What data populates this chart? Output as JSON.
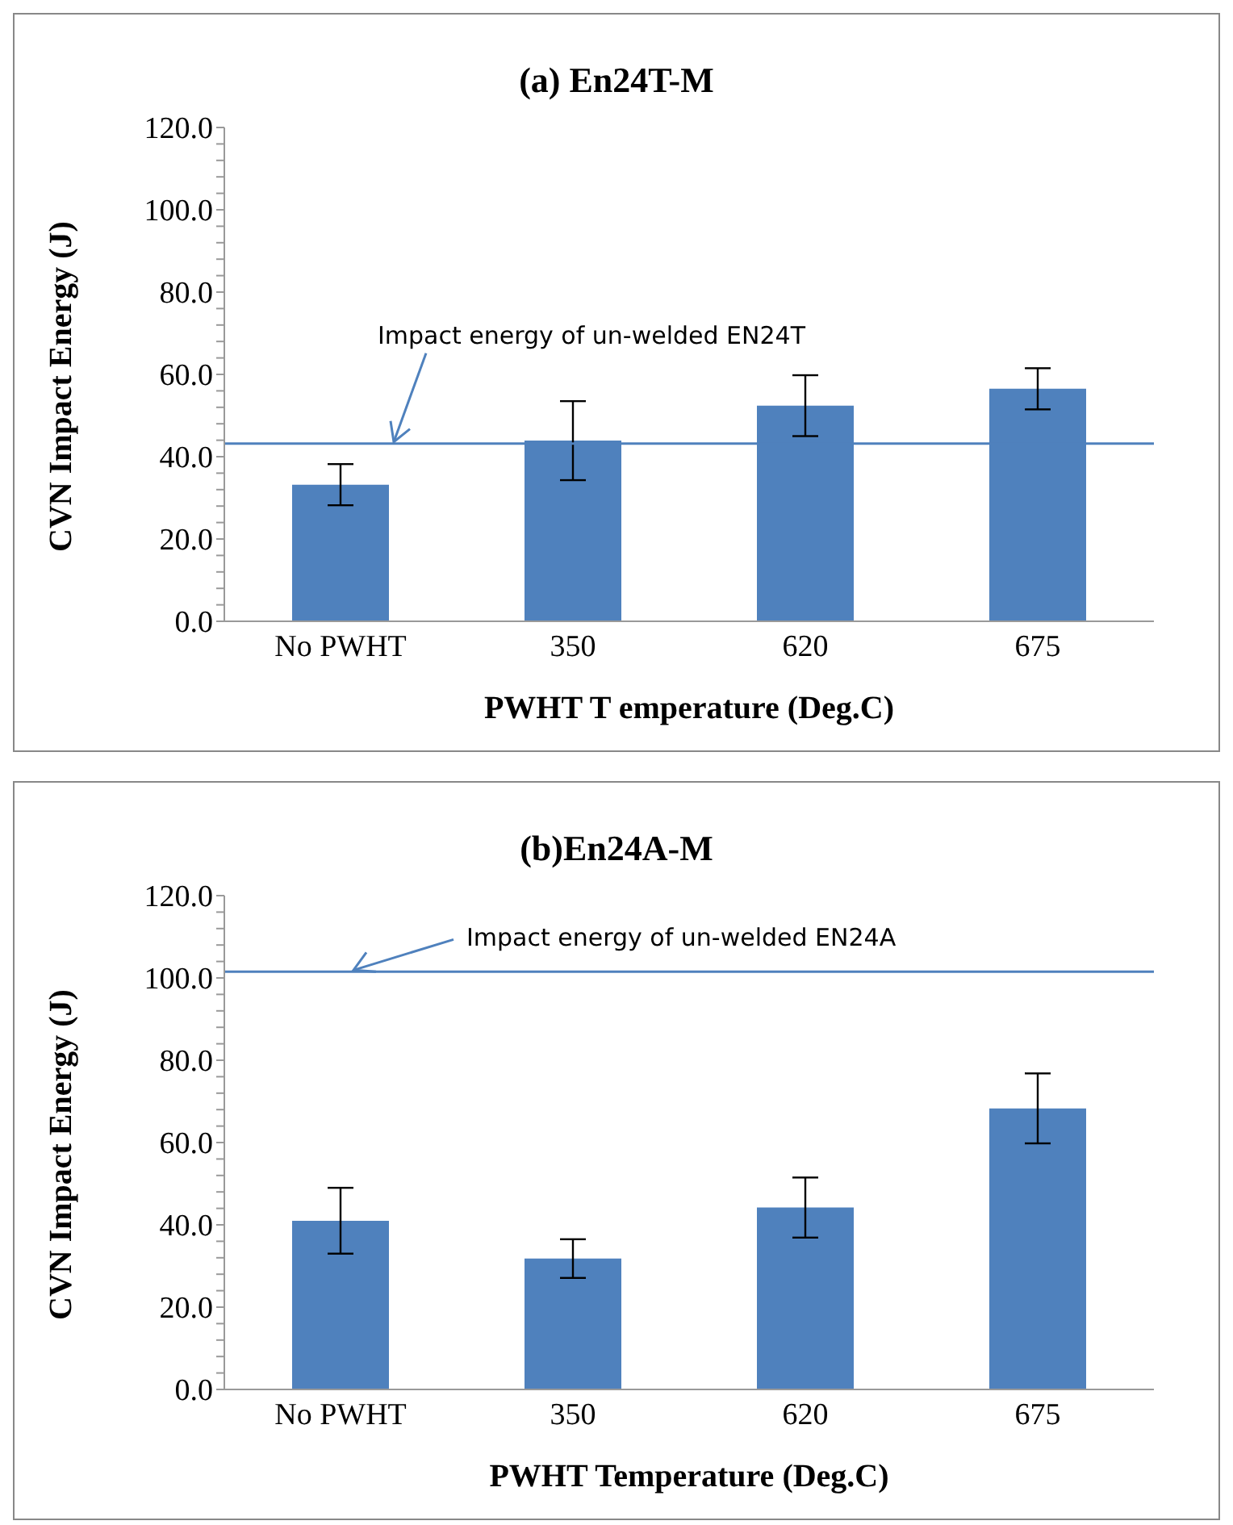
{
  "chart_data": [
    {
      "type": "bar",
      "title": "(a) En24T-M",
      "xlabel": "PWHT  T emperature (Deg.C)",
      "ylabel": "CVN Impact Energy (J)",
      "categories": [
        "No PWHT",
        "350",
        "620",
        "675"
      ],
      "values": [
        33.2,
        43.9,
        52.4,
        56.5
      ],
      "errors": [
        5,
        9.6,
        7.4,
        5
      ],
      "color": "#4f81bd",
      "ylim": [
        0,
        120
      ],
      "yticks": [
        {
          "value": 0,
          "label": "0.0"
        },
        {
          "value": 4,
          "label": null
        },
        {
          "value": 8,
          "label": null
        },
        {
          "value": 12,
          "label": null
        },
        {
          "value": 16,
          "label": null
        },
        {
          "value": 20,
          "label": "20.0"
        },
        {
          "value": 24,
          "label": null
        },
        {
          "value": 28,
          "label": null
        },
        {
          "value": 32,
          "label": null
        },
        {
          "value": 36,
          "label": null
        },
        {
          "value": 40,
          "label": "40.0"
        },
        {
          "value": 44,
          "label": null
        },
        {
          "value": 48,
          "label": null
        },
        {
          "value": 52,
          "label": null
        },
        {
          "value": 56,
          "label": null
        },
        {
          "value": 60,
          "label": "60.0"
        },
        {
          "value": 64,
          "label": null
        },
        {
          "value": 68,
          "label": null
        },
        {
          "value": 72,
          "label": null
        },
        {
          "value": 76,
          "label": null
        },
        {
          "value": 80,
          "label": "80.0"
        },
        {
          "value": 84,
          "label": null
        },
        {
          "value": 88,
          "label": null
        },
        {
          "value": 92,
          "label": null
        },
        {
          "value": 96,
          "label": null
        },
        {
          "value": 100,
          "label": "100.0"
        },
        {
          "value": 104,
          "label": null
        },
        {
          "value": 108,
          "label": null
        },
        {
          "value": 112,
          "label": null
        },
        {
          "value": 116,
          "label": null
        },
        {
          "value": 120,
          "label": "120.0"
        }
      ],
      "ref_lines": [
        {
          "axis": "y",
          "value": 43.2,
          "label": "Impact energy of un-welded EN24T",
          "color": "#4f81bd"
        }
      ],
      "grid": false
    },
    {
      "type": "bar",
      "title": "(b)En24A-M",
      "xlabel": "PWHT  Temperature (Deg.C)",
      "ylabel": "CVN Impact Energy (J)",
      "categories": [
        "No PWHT",
        "350",
        "620",
        "675"
      ],
      "values": [
        41.0,
        31.8,
        44.2,
        68.3
      ],
      "errors": [
        8,
        4.7,
        7.3,
        8.5
      ],
      "color": "#4f81bd",
      "ylim": [
        0,
        120
      ],
      "yticks": [
        {
          "value": 0,
          "label": "0.0"
        },
        {
          "value": 4,
          "label": null
        },
        {
          "value": 8,
          "label": null
        },
        {
          "value": 12,
          "label": null
        },
        {
          "value": 16,
          "label": null
        },
        {
          "value": 20,
          "label": "20.0"
        },
        {
          "value": 24,
          "label": null
        },
        {
          "value": 28,
          "label": null
        },
        {
          "value": 32,
          "label": null
        },
        {
          "value": 36,
          "label": null
        },
        {
          "value": 40,
          "label": "40.0"
        },
        {
          "value": 44,
          "label": null
        },
        {
          "value": 48,
          "label": null
        },
        {
          "value": 52,
          "label": null
        },
        {
          "value": 56,
          "label": null
        },
        {
          "value": 60,
          "label": "60.0"
        },
        {
          "value": 64,
          "label": null
        },
        {
          "value": 68,
          "label": null
        },
        {
          "value": 72,
          "label": null
        },
        {
          "value": 76,
          "label": null
        },
        {
          "value": 80,
          "label": "80.0"
        },
        {
          "value": 84,
          "label": null
        },
        {
          "value": 88,
          "label": null
        },
        {
          "value": 92,
          "label": null
        },
        {
          "value": 96,
          "label": null
        },
        {
          "value": 100,
          "label": "100.0"
        },
        {
          "value": 104,
          "label": null
        },
        {
          "value": 108,
          "label": null
        },
        {
          "value": 112,
          "label": null
        },
        {
          "value": 116,
          "label": null
        },
        {
          "value": 120,
          "label": "120.0"
        }
      ],
      "ref_lines": [
        {
          "axis": "y",
          "value": 101.5,
          "label": "Impact energy of un-welded EN24A",
          "color": "#4f81bd"
        }
      ],
      "grid": false
    }
  ]
}
